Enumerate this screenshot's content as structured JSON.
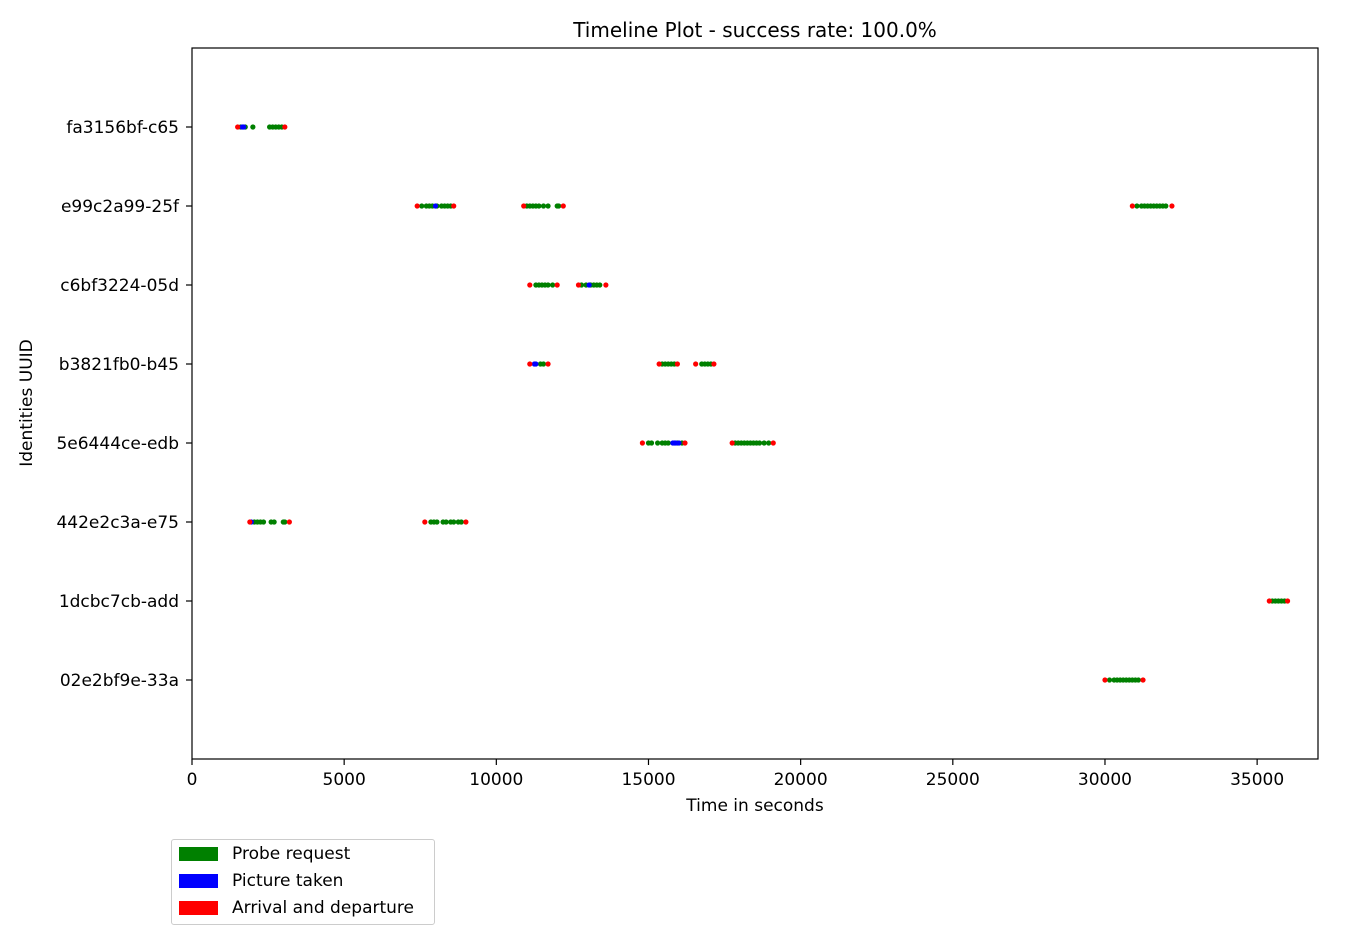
{
  "chart_data": {
    "type": "scatter",
    "title": "Timeline Plot - success rate: 100.0%",
    "xlabel": "Time in seconds",
    "ylabel": "Identities UUID",
    "xlim": [
      0,
      37000
    ],
    "xticks": [
      "0",
      "5000",
      "10000",
      "15000",
      "20000",
      "25000",
      "30000",
      "35000"
    ],
    "categories": [
      "02e2bf9e-33a",
      "1dcbc7cb-add",
      "442e2c3a-e75",
      "5e6444ce-edb",
      "b3821fb0-b45",
      "c6bf3224-05d",
      "e99c2a99-25f",
      "fa3156bf-c65"
    ],
    "colors": {
      "probe": "#008000",
      "picture": "#0000ff",
      "arrival": "#ff0000"
    },
    "legend": {
      "position": "below-left",
      "entries": [
        {
          "label": "Probe request",
          "color": "#008000"
        },
        {
          "label": "Picture taken",
          "color": "#0000ff"
        },
        {
          "label": "Arrival and departure",
          "color": "#ff0000"
        }
      ]
    },
    "series": [
      {
        "name": "Probe request",
        "points": [
          {
            "id": "fa3156bf-c65",
            "x": [
              1600,
              1750,
              2000,
              2550,
              2650,
              2750,
              2850,
              2950
            ]
          },
          {
            "id": "e99c2a99-25f",
            "x": [
              7550,
              7700,
              7800,
              7900,
              8050,
              8200,
              8300,
              8400,
              8500,
              11000,
              11100,
              11200,
              11300,
              11400,
              11550,
              11700,
              12000,
              12050,
              31050,
              31200,
              31300,
              31400,
              31500,
              31600,
              31700,
              31800,
              31900,
              32000
            ]
          },
          {
            "id": "c6bf3224-05d",
            "x": [
              11300,
              11400,
              11500,
              11600,
              11700,
              11850,
              12800,
              12950,
              13100,
              13200,
              13300,
              13400
            ]
          },
          {
            "id": "b3821fb0-b45",
            "x": [
              11450,
              11550,
              15450,
              15550,
              15650,
              15750,
              15850,
              16750,
              16850,
              16950,
              17050
            ]
          },
          {
            "id": "5e6444ce-edb",
            "x": [
              15000,
              15100,
              15300,
              15450,
              15550,
              15650,
              15950,
              16100,
              17850,
              17950,
              18050,
              18150,
              18250,
              18350,
              18450,
              18550,
              18650,
              18800,
              18950
            ]
          },
          {
            "id": "442e2c3a-e75",
            "x": [
              2050,
              2150,
              2250,
              2350,
              2600,
              2700,
              3000,
              3050,
              7850,
              7950,
              8050,
              8250,
              8350,
              8500,
              8600,
              8750,
              8850
            ]
          },
          {
            "id": "1dcbc7cb-add",
            "x": [
              35500,
              35600,
              35700,
              35800,
              35900
            ]
          },
          {
            "id": "02e2bf9e-33a",
            "x": [
              30150,
              30300,
              30400,
              30500,
              30600,
              30700,
              30800,
              30900,
              31000,
              31100
            ]
          }
        ]
      },
      {
        "name": "Picture taken",
        "points": [
          {
            "id": "fa3156bf-c65",
            "x": [
              1650,
              1700
            ]
          },
          {
            "id": "e99c2a99-25f",
            "x": [
              8000
            ]
          },
          {
            "id": "c6bf3224-05d",
            "x": [
              13050
            ]
          },
          {
            "id": "b3821fb0-b45",
            "x": [
              11250,
              11300
            ]
          },
          {
            "id": "5e6444ce-edb",
            "x": [
              15800,
              15850,
              15900,
              16000
            ]
          },
          {
            "id": "442e2c3a-e75",
            "x": [
              1950
            ]
          },
          {
            "id": "1dcbc7cb-add",
            "x": []
          },
          {
            "id": "02e2bf9e-33a",
            "x": []
          }
        ]
      },
      {
        "name": "Arrival and departure",
        "points": [
          {
            "id": "fa3156bf-c65",
            "x": [
              1500,
              3050
            ]
          },
          {
            "id": "e99c2a99-25f",
            "x": [
              7400,
              8600,
              10900,
              12200,
              30900,
              32200
            ]
          },
          {
            "id": "c6bf3224-05d",
            "x": [
              11100,
              12000,
              12700,
              13600
            ]
          },
          {
            "id": "b3821fb0-b45",
            "x": [
              11100,
              11700,
              15350,
              15950,
              16550,
              17150
            ]
          },
          {
            "id": "5e6444ce-edb",
            "x": [
              14800,
              16200,
              17750,
              19100
            ]
          },
          {
            "id": "442e2c3a-e75",
            "x": [
              1900,
              3200,
              7650,
              9000
            ]
          },
          {
            "id": "1dcbc7cb-add",
            "x": [
              35400,
              36000
            ]
          },
          {
            "id": "02e2bf9e-33a",
            "x": [
              30000,
              31250
            ]
          }
        ]
      }
    ]
  }
}
